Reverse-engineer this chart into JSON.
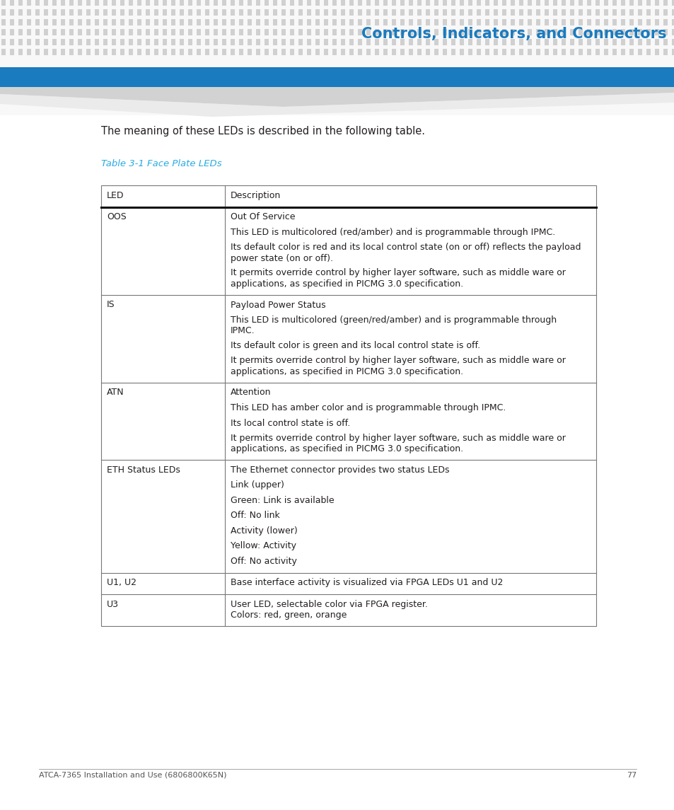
{
  "page_title": "Controls, Indicators, and Connectors",
  "header_dot_color": "#d3d3d3",
  "header_title_color": "#1a7bbf",
  "header_title_fontsize": 15,
  "intro_text": "The meaning of these LEDs is described in the following table.",
  "table_title": "Table 3-1 Face Plate LEDs",
  "table_title_color": "#29abe2",
  "col1_header": "LED",
  "col2_header": "Description",
  "rows": [
    {
      "led": "OOS",
      "desc_lines": [
        "Out Of Service",
        "This LED is multicolored (red/amber) and is programmable through IPMC.",
        "Its default color is red and its local control state (on or off) reflects the payload\npower state (on or off).",
        "It permits override control by higher layer software, such as middle ware or\napplications, as specified in PICMG 3.0 specification."
      ]
    },
    {
      "led": "IS",
      "desc_lines": [
        "Payload Power Status",
        "This LED is multicolored (green/red/amber) and is programmable through\nIPMC.",
        "Its default color is green and its local control state is off.",
        "It permits override control by higher layer software, such as middle ware or\napplications, as specified in PICMG 3.0 specification."
      ]
    },
    {
      "led": "ATN",
      "desc_lines": [
        "Attention",
        "This LED has amber color and is programmable through IPMC.",
        "Its local control state is off.",
        "It permits override control by higher layer software, such as middle ware or\napplications, as specified in PICMG 3.0 specification."
      ]
    },
    {
      "led": "ETH Status LEDs",
      "desc_lines": [
        "The Ethernet connector provides two status LEDs",
        "Link (upper)",
        "Green: Link is available",
        "Off: No link",
        "Activity (lower)",
        "Yellow: Activity",
        "Off: No activity"
      ]
    },
    {
      "led": "U1, U2",
      "desc_lines": [
        "Base interface activity is visualized via FPGA LEDs U1 and U2"
      ]
    },
    {
      "led": "U3",
      "desc_lines": [
        "User LED, selectable color via FPGA register.\nColors: red, green, orange"
      ]
    }
  ],
  "footer_text": "ATCA-7365 Installation and Use (6806800K65N)",
  "footer_page": "77",
  "bg_color": "#ffffff",
  "table_border_color": "#777777",
  "text_color": "#231f20",
  "font_size": 9.0
}
